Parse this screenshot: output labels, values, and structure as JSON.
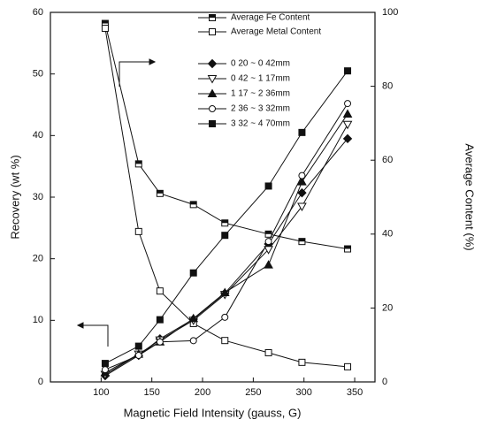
{
  "chart_data": {
    "type": "line",
    "x_label": "Magnetic Field Intensity (gauss, G)",
    "y_label": "Recovery (wt %)",
    "y2_label": "Average Content (%)",
    "x": [
      104,
      137,
      158,
      191,
      222,
      265,
      298,
      343
    ],
    "xlim": [
      50,
      370
    ],
    "xticks": [
      100,
      150,
      200,
      250,
      300,
      350
    ],
    "ylim": [
      0,
      60
    ],
    "yticks": [
      0,
      10,
      20,
      30,
      40,
      50,
      60
    ],
    "y2lim": [
      0,
      100
    ],
    "y2ticks": [
      0,
      20,
      40,
      60,
      80,
      100
    ],
    "series": [
      {
        "name": "Average Fe Content",
        "color": "#111111",
        "marker": "square-half",
        "axis": "y2",
        "values": [
          97,
          59,
          51,
          48,
          43,
          40,
          38,
          36
        ]
      },
      {
        "name": "Average Metal Content",
        "color": "#111111",
        "marker": "square-open",
        "axis": "y2",
        "values": [
          95.7,
          40.7,
          24.6,
          15.8,
          11.2,
          7.9,
          5.3,
          4.1
        ]
      },
      {
        "name": "0 20 ~ 0 42mm",
        "color": "#111111",
        "marker": "diamond",
        "values": [
          1.0,
          4.3,
          7.0,
          10.2,
          14.4,
          22.4,
          30.7,
          39.5
        ]
      },
      {
        "name": "0 42 ~ 1 17mm",
        "color": "#111111",
        "marker": "triangle-down-open",
        "values": [
          1.2,
          4.5,
          6.8,
          10.0,
          14.2,
          21.5,
          28.5,
          41.8
        ]
      },
      {
        "name": "1 17 ~ 2 36mm",
        "color": "#111111",
        "marker": "triangle",
        "values": [
          1.5,
          4.5,
          6.5,
          10.3,
          14.5,
          19.0,
          32.5,
          43.5
        ]
      },
      {
        "name": "2 36 ~ 3 32mm",
        "color": "#111111",
        "marker": "circle-open",
        "values": [
          2.0,
          4.3,
          6.5,
          6.7,
          10.5,
          22.8,
          33.5,
          45.2
        ]
      },
      {
        "name": "3 32 ~ 4 70mm",
        "color": "#111111",
        "marker": "square",
        "values": [
          3.0,
          5.8,
          10.1,
          17.7,
          23.8,
          31.8,
          40.5,
          50.5
        ]
      }
    ]
  }
}
